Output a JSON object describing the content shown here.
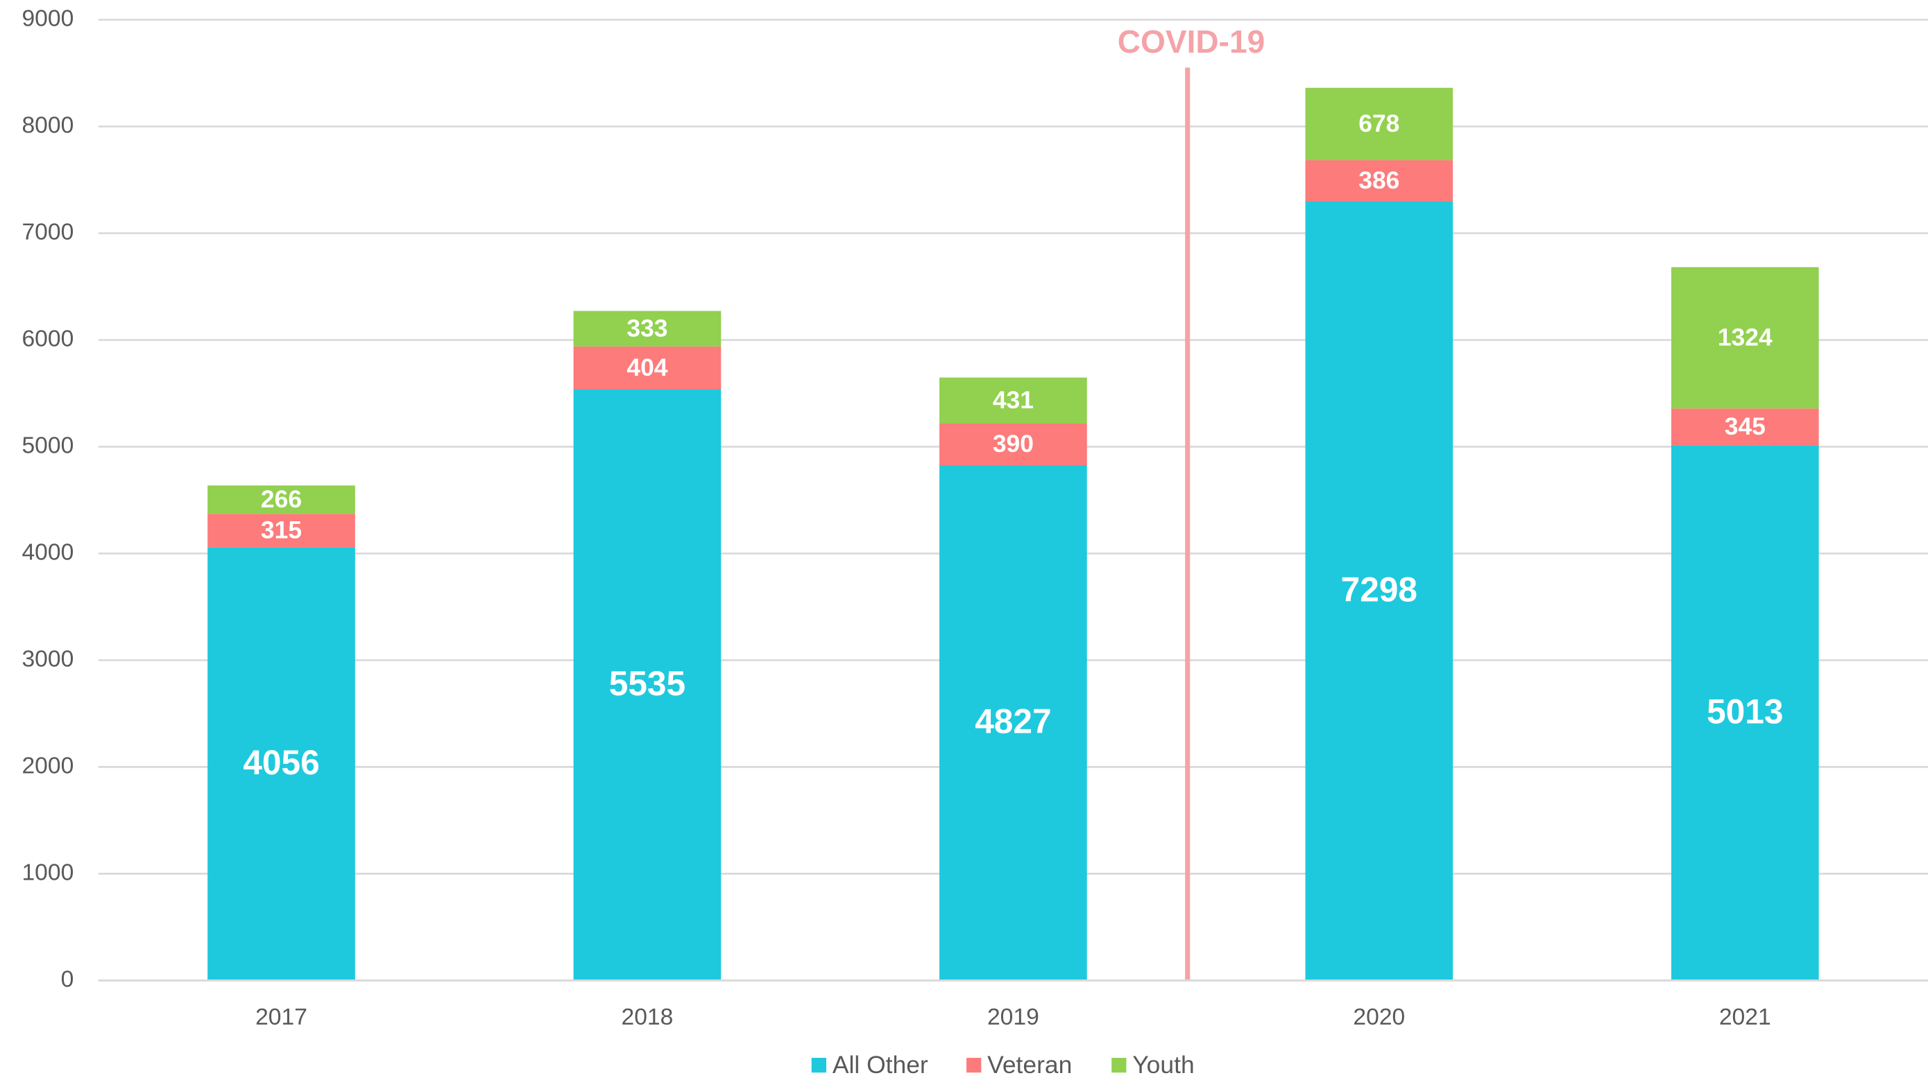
{
  "chart_data": {
    "type": "stacked_bar",
    "annotation": "COVID-19",
    "categories": [
      "2017",
      "2018",
      "2019",
      "2020",
      "2021"
    ],
    "series": [
      {
        "name": "All Other",
        "color": "#1ec9dd",
        "values": [
          4056,
          5535,
          4827,
          7298,
          5013
        ]
      },
      {
        "name": "Veteran",
        "color": "#fd7b7b",
        "values": [
          315,
          404,
          390,
          386,
          345
        ]
      },
      {
        "name": "Youth",
        "color": "#92d050",
        "values": [
          266,
          333,
          431,
          678,
          1324
        ]
      }
    ],
    "ylim": [
      0,
      9000
    ],
    "yticks": [
      0,
      1000,
      2000,
      3000,
      4000,
      5000,
      6000,
      7000,
      8000,
      9000
    ],
    "grid": true,
    "legend": "bottom"
  }
}
